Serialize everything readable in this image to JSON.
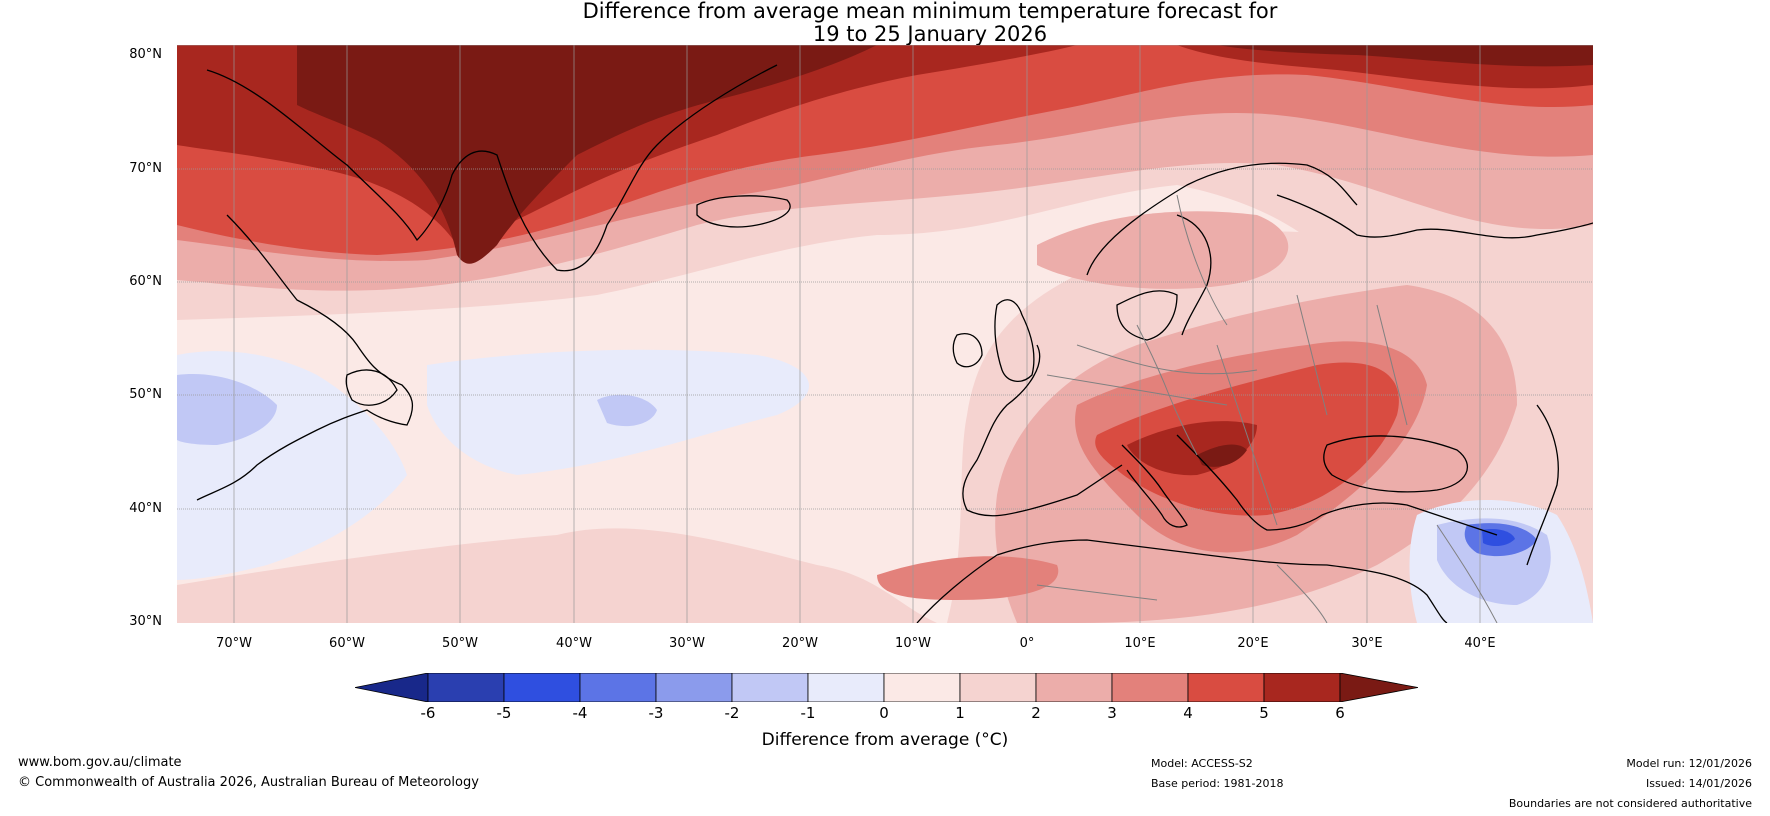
{
  "title": {
    "line1": "Difference from average mean minimum temperature forecast for",
    "line2": "19 to 25 January 2026"
  },
  "map": {
    "lat_labels": [
      "80°N",
      "70°N",
      "60°N",
      "50°N",
      "40°N",
      "30°N"
    ],
    "lon_labels": [
      "70°W",
      "60°W",
      "50°W",
      "40°W",
      "30°W",
      "20°W",
      "10°W",
      "0°",
      "10°E",
      "20°E",
      "30°E",
      "40°E"
    ],
    "land_outline_color": "#000000",
    "border_color": "#808080"
  },
  "colorbar": {
    "ticks": [
      "-6",
      "-5",
      "-4",
      "-3",
      "-2",
      "-1",
      "0",
      "1",
      "2",
      "3",
      "4",
      "5",
      "6"
    ],
    "colors": [
      "#18288a",
      "#2a3fb0",
      "#2f4fe0",
      "#5c74e6",
      "#8b9bec",
      "#c1c8f5",
      "#e8ebfb",
      "#fbe9e6",
      "#f5d3d0",
      "#ecadaa",
      "#e3817b",
      "#d94c41",
      "#a8271f",
      "#7a1a14"
    ],
    "label": "Difference from average (°C)"
  },
  "footer": {
    "website": "www.bom.gov.au/climate",
    "copyright": "© Commonwealth of Australia 2026, Australian Bureau of Meteorology",
    "model": "Model: ACCESS-S2",
    "base_period": "Base period: 1981-2018",
    "model_run": "Model run: 12/01/2026",
    "issued": "Issued: 14/01/2026",
    "disclaimer": "Boundaries are not considered authoritative"
  }
}
